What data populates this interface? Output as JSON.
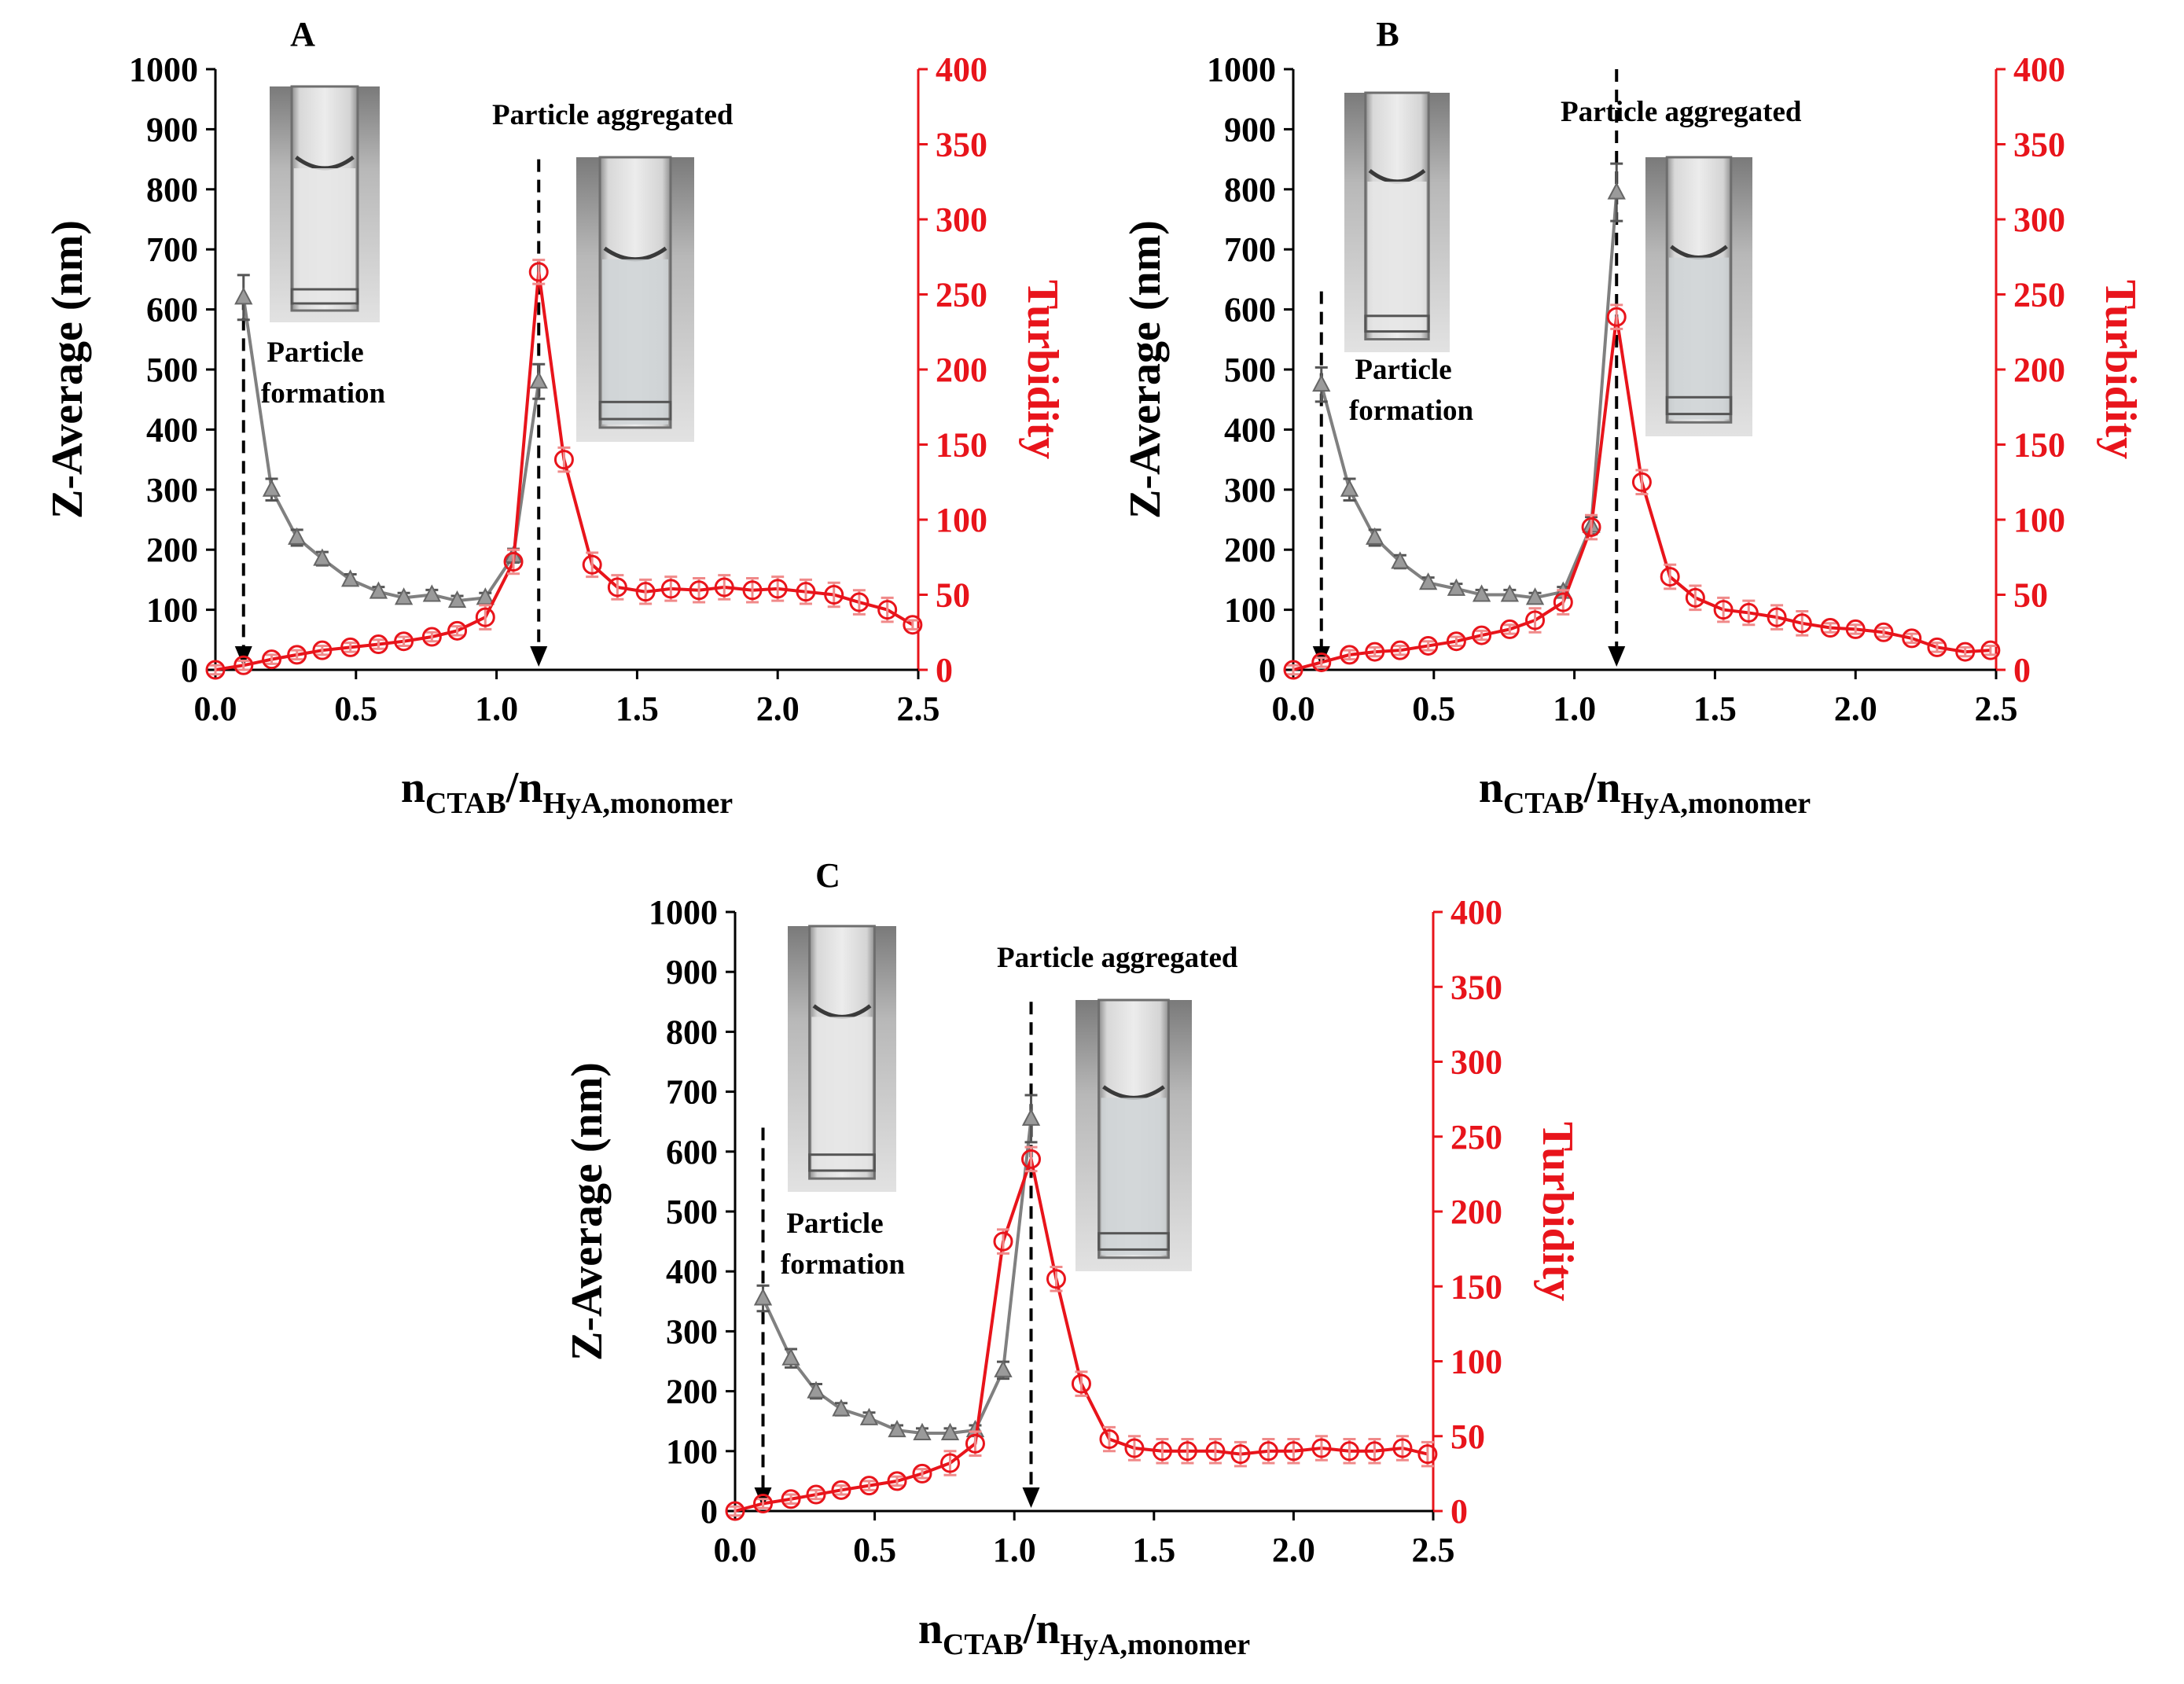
{
  "figure": {
    "axis": {
      "x_ticks": [
        "0.0",
        "0.5",
        "1.0",
        "1.5",
        "2.0",
        "2.5"
      ],
      "y_left_ticks": [
        "0",
        "100",
        "200",
        "300",
        "400",
        "500",
        "600",
        "700",
        "800",
        "900",
        "1000"
      ],
      "y_right_ticks": [
        "0",
        "50",
        "100",
        "150",
        "200",
        "250",
        "300",
        "350",
        "400"
      ],
      "xlabel_n": "n",
      "xlabel_sub1": "CTAB",
      "xlabel_slash": "/",
      "xlabel_sub2": "HyA,monomer",
      "ylabel_left": "Z-Average  (nm)",
      "ylabel_right": "Turbidity"
    },
    "annotations": {
      "formation_line1": "Particle",
      "formation_line2": "formation",
      "aggregated": "Particle aggregated"
    },
    "colors": {
      "zavg": "#808080",
      "turbidity": "#e8141b",
      "error_bar": "#f08a8a",
      "axis_right": "#e8141b"
    }
  },
  "chart_data": [
    {
      "type": "line",
      "panel": "A",
      "xlabel": "nCTAB/nHyA,monomer",
      "ylabel": "Z-Average  (nm)",
      "ylabel_right": "Turbidity",
      "xlim": [
        0,
        2.5
      ],
      "ylim": [
        0,
        1000
      ],
      "ylim_right": [
        0,
        400
      ],
      "arrows_x": [
        0.1,
        1.15
      ],
      "series": [
        {
          "name": "Z-Average",
          "axis": "left",
          "marker": "triangle",
          "x": [
            0.1,
            0.2,
            0.29,
            0.38,
            0.48,
            0.58,
            0.67,
            0.77,
            0.86,
            0.96,
            1.06,
            1.15
          ],
          "values": [
            620,
            300,
            220,
            185,
            150,
            130,
            120,
            125,
            115,
            120,
            190,
            480
          ]
        },
        {
          "name": "Turbidity",
          "axis": "right",
          "marker": "circle",
          "x": [
            0.0,
            0.1,
            0.2,
            0.29,
            0.38,
            0.48,
            0.58,
            0.67,
            0.77,
            0.86,
            0.96,
            1.06,
            1.15,
            1.24,
            1.34,
            1.43,
            1.53,
            1.62,
            1.72,
            1.81,
            1.91,
            2.0,
            2.1,
            2.2,
            2.29,
            2.39,
            2.48
          ],
          "values": [
            0,
            3,
            7,
            10,
            13,
            15,
            17,
            19,
            22,
            26,
            35,
            72,
            265,
            140,
            70,
            55,
            52,
            54,
            53,
            55,
            53,
            54,
            52,
            50,
            45,
            40,
            30
          ]
        }
      ]
    },
    {
      "type": "line",
      "panel": "B",
      "xlabel": "nCTAB/nHyA,monomer",
      "ylabel": "Z-Average  (nm)",
      "ylabel_right": "Turbidity",
      "xlim": [
        0,
        2.5
      ],
      "ylim": [
        0,
        1000
      ],
      "ylim_right": [
        0,
        400
      ],
      "arrows_x": [
        0.1,
        1.15
      ],
      "series": [
        {
          "name": "Z-Average",
          "axis": "left",
          "marker": "triangle",
          "x": [
            0.1,
            0.2,
            0.29,
            0.38,
            0.48,
            0.58,
            0.67,
            0.77,
            0.86,
            0.96,
            1.06,
            1.15
          ],
          "values": [
            475,
            300,
            220,
            180,
            145,
            135,
            125,
            125,
            120,
            130,
            240,
            795
          ]
        },
        {
          "name": "Turbidity",
          "axis": "right",
          "marker": "circle",
          "x": [
            0.0,
            0.1,
            0.2,
            0.29,
            0.38,
            0.48,
            0.58,
            0.67,
            0.77,
            0.86,
            0.96,
            1.06,
            1.15,
            1.24,
            1.34,
            1.43,
            1.53,
            1.62,
            1.72,
            1.81,
            1.91,
            2.0,
            2.1,
            2.2,
            2.29,
            2.39,
            2.48
          ],
          "values": [
            0,
            5,
            10,
            12,
            13,
            16,
            19,
            23,
            27,
            33,
            45,
            95,
            235,
            125,
            62,
            48,
            40,
            38,
            35,
            31,
            28,
            27,
            25,
            21,
            15,
            12,
            13
          ]
        }
      ]
    },
    {
      "type": "line",
      "panel": "C",
      "xlabel": "nCTAB/nHyA,monomer",
      "ylabel": "Z-Average  (nm)",
      "ylabel_right": "Turbidity",
      "xlim": [
        0,
        2.5
      ],
      "ylim": [
        0,
        1000
      ],
      "ylim_right": [
        0,
        400
      ],
      "arrows_x": [
        0.1,
        1.06
      ],
      "series": [
        {
          "name": "Z-Average",
          "axis": "left",
          "marker": "triangle",
          "x": [
            0.1,
            0.2,
            0.29,
            0.38,
            0.48,
            0.58,
            0.67,
            0.77,
            0.86,
            0.96,
            1.06
          ],
          "values": [
            355,
            255,
            200,
            170,
            155,
            135,
            130,
            130,
            135,
            235,
            655
          ]
        },
        {
          "name": "Turbidity",
          "axis": "right",
          "marker": "circle",
          "x": [
            0.0,
            0.1,
            0.2,
            0.29,
            0.38,
            0.48,
            0.58,
            0.67,
            0.77,
            0.86,
            0.96,
            1.06,
            1.15,
            1.24,
            1.34,
            1.43,
            1.53,
            1.62,
            1.72,
            1.81,
            1.91,
            2.0,
            2.1,
            2.2,
            2.29,
            2.39,
            2.48
          ],
          "values": [
            0,
            5,
            8,
            11,
            14,
            17,
            20,
            25,
            32,
            45,
            180,
            235,
            155,
            85,
            48,
            42,
            40,
            40,
            40,
            38,
            40,
            40,
            42,
            40,
            40,
            42,
            38
          ]
        }
      ]
    }
  ]
}
